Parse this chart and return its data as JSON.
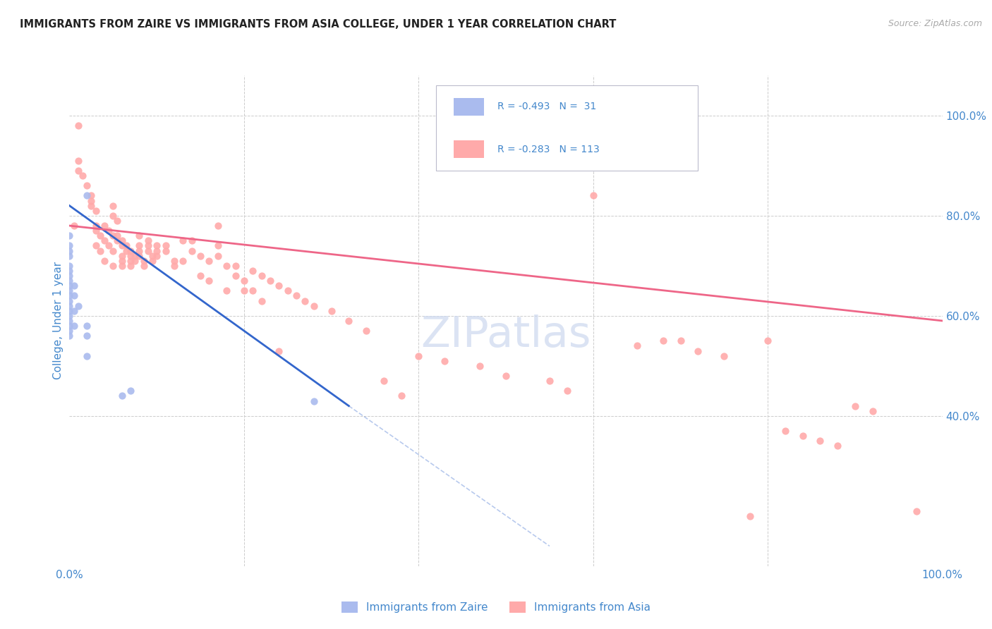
{
  "title": "IMMIGRANTS FROM ZAIRE VS IMMIGRANTS FROM ASIA COLLEGE, UNDER 1 YEAR CORRELATION CHART",
  "source": "Source: ZipAtlas.com",
  "ylabel": "College, Under 1 year",
  "axis_label_color": "#4488cc",
  "background_color": "#ffffff",
  "grid_color": "#cccccc",
  "zaire_color": "#aabbee",
  "asia_color": "#ffaaaa",
  "zaire_line_color": "#3366cc",
  "asia_line_color": "#ee6688",
  "zaire_scatter": [
    [
      0.0,
      76
    ],
    [
      0.0,
      74
    ],
    [
      0.0,
      73
    ],
    [
      0.0,
      72
    ],
    [
      0.0,
      70
    ],
    [
      0.0,
      69
    ],
    [
      0.0,
      68
    ],
    [
      0.0,
      67
    ],
    [
      0.0,
      66
    ],
    [
      0.0,
      65
    ],
    [
      0.0,
      64
    ],
    [
      0.0,
      63
    ],
    [
      0.0,
      62
    ],
    [
      0.0,
      61
    ],
    [
      0.0,
      60
    ],
    [
      0.0,
      59
    ],
    [
      0.0,
      58
    ],
    [
      0.0,
      57
    ],
    [
      0.0,
      56
    ],
    [
      0.5,
      66
    ],
    [
      0.5,
      64
    ],
    [
      0.5,
      61
    ],
    [
      0.5,
      58
    ],
    [
      1.0,
      62
    ],
    [
      2.0,
      58
    ],
    [
      2.0,
      56
    ],
    [
      2.0,
      52
    ],
    [
      2.0,
      84
    ],
    [
      6.0,
      44
    ],
    [
      7.0,
      45
    ],
    [
      28.0,
      43
    ]
  ],
  "asia_scatter": [
    [
      0.5,
      78
    ],
    [
      1.0,
      98
    ],
    [
      1.0,
      91
    ],
    [
      1.0,
      89
    ],
    [
      1.5,
      88
    ],
    [
      2.0,
      86
    ],
    [
      2.5,
      84
    ],
    [
      2.5,
      83
    ],
    [
      2.5,
      82
    ],
    [
      3.0,
      81
    ],
    [
      3.0,
      78
    ],
    [
      3.0,
      77
    ],
    [
      3.0,
      74
    ],
    [
      3.5,
      76
    ],
    [
      3.5,
      73
    ],
    [
      4.0,
      78
    ],
    [
      4.0,
      75
    ],
    [
      4.0,
      71
    ],
    [
      4.5,
      77
    ],
    [
      4.5,
      74
    ],
    [
      5.0,
      76
    ],
    [
      5.0,
      73
    ],
    [
      5.0,
      70
    ],
    [
      5.0,
      82
    ],
    [
      5.0,
      80
    ],
    [
      5.5,
      79
    ],
    [
      5.5,
      76
    ],
    [
      5.5,
      75
    ],
    [
      6.0,
      75
    ],
    [
      6.0,
      74
    ],
    [
      6.0,
      72
    ],
    [
      6.0,
      71
    ],
    [
      6.0,
      70
    ],
    [
      6.5,
      74
    ],
    [
      6.5,
      73
    ],
    [
      7.0,
      73
    ],
    [
      7.0,
      72
    ],
    [
      7.0,
      71
    ],
    [
      7.0,
      70
    ],
    [
      7.5,
      72
    ],
    [
      7.5,
      71
    ],
    [
      8.0,
      76
    ],
    [
      8.0,
      74
    ],
    [
      8.0,
      73
    ],
    [
      8.0,
      72
    ],
    [
      8.5,
      71
    ],
    [
      8.5,
      70
    ],
    [
      9.0,
      75
    ],
    [
      9.0,
      74
    ],
    [
      9.0,
      73
    ],
    [
      9.5,
      72
    ],
    [
      9.5,
      71
    ],
    [
      10.0,
      74
    ],
    [
      10.0,
      73
    ],
    [
      10.0,
      72
    ],
    [
      11.0,
      74
    ],
    [
      11.0,
      73
    ],
    [
      12.0,
      71
    ],
    [
      12.0,
      70
    ],
    [
      13.0,
      75
    ],
    [
      13.0,
      71
    ],
    [
      14.0,
      75
    ],
    [
      14.0,
      73
    ],
    [
      15.0,
      72
    ],
    [
      15.0,
      68
    ],
    [
      16.0,
      71
    ],
    [
      16.0,
      67
    ],
    [
      17.0,
      78
    ],
    [
      17.0,
      74
    ],
    [
      17.0,
      72
    ],
    [
      18.0,
      70
    ],
    [
      18.0,
      65
    ],
    [
      19.0,
      70
    ],
    [
      19.0,
      68
    ],
    [
      20.0,
      67
    ],
    [
      20.0,
      65
    ],
    [
      21.0,
      69
    ],
    [
      21.0,
      65
    ],
    [
      22.0,
      68
    ],
    [
      22.0,
      63
    ],
    [
      23.0,
      67
    ],
    [
      24.0,
      66
    ],
    [
      24.0,
      53
    ],
    [
      25.0,
      65
    ],
    [
      26.0,
      64
    ],
    [
      27.0,
      63
    ],
    [
      28.0,
      62
    ],
    [
      30.0,
      61
    ],
    [
      32.0,
      59
    ],
    [
      34.0,
      57
    ],
    [
      36.0,
      47
    ],
    [
      38.0,
      44
    ],
    [
      40.0,
      52
    ],
    [
      43.0,
      51
    ],
    [
      47.0,
      50
    ],
    [
      50.0,
      48
    ],
    [
      55.0,
      47
    ],
    [
      57.0,
      45
    ],
    [
      60.0,
      84
    ],
    [
      65.0,
      54
    ],
    [
      68.0,
      55
    ],
    [
      70.0,
      55
    ],
    [
      72.0,
      53
    ],
    [
      75.0,
      52
    ],
    [
      78.0,
      20
    ],
    [
      80.0,
      55
    ],
    [
      82.0,
      37
    ],
    [
      84.0,
      36
    ],
    [
      86.0,
      35
    ],
    [
      88.0,
      34
    ],
    [
      90.0,
      42
    ],
    [
      92.0,
      41
    ],
    [
      97.0,
      21
    ]
  ],
  "zaire_line": [
    [
      0.0,
      82
    ],
    [
      32.0,
      42
    ]
  ],
  "zaire_line_dashed": [
    [
      32.0,
      42
    ],
    [
      55.0,
      14
    ]
  ],
  "asia_line": [
    [
      0.0,
      78
    ],
    [
      100.0,
      59
    ]
  ],
  "xlim": [
    0,
    100
  ],
  "ylim": [
    10,
    108
  ],
  "xticks": [
    0,
    100
  ],
  "xticklabels": [
    "0.0%",
    "100.0%"
  ],
  "yticks": [
    40,
    60,
    80,
    100
  ],
  "yticklabels": [
    "40.0%",
    "60.0%",
    "80.0%",
    "100.0%"
  ],
  "grid_xticks": [
    20,
    40,
    60,
    80
  ],
  "grid_yticks": [
    40,
    60,
    80,
    100
  ],
  "marker_size": 55,
  "legend_r1": "R = -0.493",
  "legend_n1": "N =  31",
  "legend_r2": "R = -0.283",
  "legend_n2": "N = 113",
  "watermark": "ZIPatlas",
  "watermark_color": "#ccd8ee",
  "series1_label": "Immigrants from Zaire",
  "series2_label": "Immigrants from Asia"
}
